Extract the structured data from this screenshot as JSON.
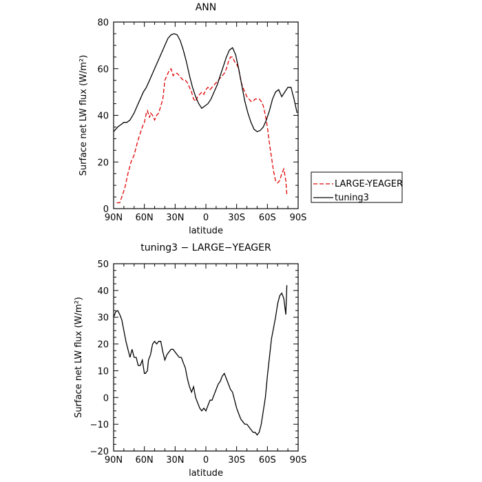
{
  "chart_data": [
    {
      "type": "line",
      "title": "ANN",
      "xlabel": "latitude",
      "ylabel": "Surface net LW flux (W/m²)",
      "xlim": [
        90,
        -90
      ],
      "ylim": [
        0,
        80
      ],
      "xticks": [
        90,
        60,
        30,
        0,
        -30,
        -60,
        -90
      ],
      "xtick_labels": [
        "90N",
        "60N",
        "30N",
        "0",
        "30S",
        "60S",
        "90S"
      ],
      "yticks": [
        0,
        20,
        40,
        60,
        80
      ],
      "ytick_labels": [
        "0",
        "20",
        "40",
        "60",
        "80"
      ],
      "legend_position": "outside-right",
      "legend": [
        "LARGE-YEAGER",
        "tuning3"
      ],
      "series": [
        {
          "name": "LARGE-YEAGER",
          "color": "#e00000",
          "dash": "dashed",
          "x": [
            87,
            84,
            82,
            79,
            76,
            73,
            70,
            67,
            65,
            62,
            60,
            58,
            57,
            55,
            54,
            52,
            50,
            48,
            46,
            44,
            42,
            40,
            38,
            36,
            34,
            32,
            30,
            28,
            26,
            24,
            22,
            20,
            18,
            16,
            14,
            12,
            10,
            8,
            6,
            4,
            2,
            0,
            -2,
            -4,
            -6,
            -8,
            -10,
            -12,
            -14,
            -16,
            -18,
            -20,
            -22,
            -24,
            -26,
            -28,
            -30,
            -32,
            -34,
            -36,
            -38,
            -40,
            -42,
            -44,
            -46,
            -48,
            -50,
            -52,
            -54,
            -56,
            -58,
            -60,
            -62,
            -64,
            -66,
            -68,
            -70,
            -72,
            -74,
            -76,
            -78,
            -79
          ],
          "y": [
            2.5,
            2.5,
            5,
            9,
            15,
            20,
            23,
            28,
            31,
            35,
            37,
            41,
            42,
            39,
            41,
            40,
            38,
            40,
            41,
            44,
            47,
            55,
            57,
            59,
            60,
            57,
            58,
            58,
            57,
            56,
            55,
            55,
            54,
            52,
            50,
            47,
            46,
            48,
            49,
            50,
            49,
            51,
            52,
            51,
            52,
            53,
            54,
            55,
            56,
            57,
            58,
            60,
            63,
            65,
            65,
            63,
            62,
            60,
            55,
            52,
            50,
            48,
            47,
            46,
            46,
            47,
            47,
            47,
            46,
            44,
            40,
            35,
            28,
            22,
            16,
            12,
            11,
            12,
            15,
            17,
            12,
            6
          ]
        },
        {
          "name": "tuning3",
          "color": "#000000",
          "dash": "solid",
          "x": [
            90,
            86,
            83,
            80,
            77,
            74,
            70,
            67,
            64,
            61,
            58,
            55,
            52,
            49,
            46,
            43,
            40,
            37,
            34,
            31,
            28,
            25,
            22,
            19,
            16,
            13,
            10,
            7,
            4,
            1,
            -2,
            -5,
            -8,
            -11,
            -14,
            -17,
            -20,
            -23,
            -26,
            -29,
            -32,
            -35,
            -38,
            -41,
            -44,
            -47,
            -50,
            -53,
            -56,
            -59,
            -62,
            -65,
            -68,
            -71,
            -74,
            -77,
            -80,
            -83,
            -86,
            -89
          ],
          "y": [
            33,
            35,
            36,
            37,
            37,
            38,
            41,
            44,
            47,
            50,
            52,
            55,
            58,
            61,
            64,
            67,
            70,
            73,
            74.5,
            75,
            74.5,
            72,
            68,
            63,
            57,
            52,
            48,
            45,
            43,
            44,
            45,
            47,
            50,
            53,
            57,
            61,
            65,
            68,
            69,
            66,
            60,
            53,
            46,
            41,
            37,
            34,
            33,
            33.5,
            35,
            38,
            42,
            47,
            50,
            51,
            48,
            50,
            52,
            52,
            47,
            41
          ]
        }
      ]
    },
    {
      "type": "line",
      "title": "tuning3 − LARGE−YEAGER",
      "xlabel": "latitude",
      "ylabel": "Surface net LW flux (W/m²)",
      "xlim": [
        90,
        -90
      ],
      "ylim": [
        -20,
        50
      ],
      "xticks": [
        90,
        60,
        30,
        0,
        -30,
        -60,
        -90
      ],
      "xtick_labels": [
        "90N",
        "60N",
        "30N",
        "0",
        "30S",
        "60S",
        "90S"
      ],
      "yticks": [
        -20,
        -10,
        0,
        10,
        20,
        30,
        40,
        50
      ],
      "ytick_labels": [
        "−20",
        "−10",
        "0",
        "10",
        "20",
        "30",
        "40",
        "50"
      ],
      "series": [
        {
          "color": "#000000",
          "dash": "solid",
          "x": [
            90,
            88,
            86,
            84,
            82,
            80,
            78,
            76,
            74,
            72,
            70,
            68,
            66,
            64,
            62,
            60,
            59,
            57,
            56,
            54,
            52,
            50,
            48,
            46,
            44,
            42,
            40,
            38,
            36,
            34,
            32,
            30,
            28,
            26,
            24,
            22,
            20,
            18,
            16,
            14,
            12,
            10,
            8,
            6,
            4,
            2,
            0,
            -2,
            -4,
            -6,
            -8,
            -10,
            -12,
            -14,
            -16,
            -18,
            -20,
            -22,
            -24,
            -26,
            -28,
            -30,
            -32,
            -34,
            -36,
            -38,
            -40,
            -42,
            -44,
            -46,
            -48,
            -50,
            -52,
            -54,
            -56,
            -58,
            -60,
            -62,
            -64,
            -66,
            -68,
            -70,
            -72,
            -74,
            -76,
            -78,
            -79
          ],
          "y": [
            30,
            32,
            32.5,
            31,
            29,
            25,
            21,
            18,
            15,
            18,
            15,
            15,
            12,
            12,
            14,
            9,
            9,
            10,
            14,
            16,
            20,
            21,
            20,
            21,
            21,
            17,
            14,
            16,
            17,
            18,
            18,
            17,
            16,
            15,
            15,
            13,
            11,
            7,
            4,
            2,
            4,
            0,
            -2,
            -4,
            -5,
            -4,
            -5,
            -3,
            -1,
            -1,
            1,
            3,
            5,
            6,
            8,
            9,
            7,
            5,
            3,
            2,
            -1,
            -4,
            -6,
            -8,
            -9,
            -10,
            -10,
            -11,
            -12,
            -13,
            -13,
            -14,
            -13,
            -10,
            -5,
            0,
            8,
            15,
            22,
            26,
            30,
            35,
            38,
            39,
            37,
            31,
            42
          ]
        }
      ]
    }
  ]
}
